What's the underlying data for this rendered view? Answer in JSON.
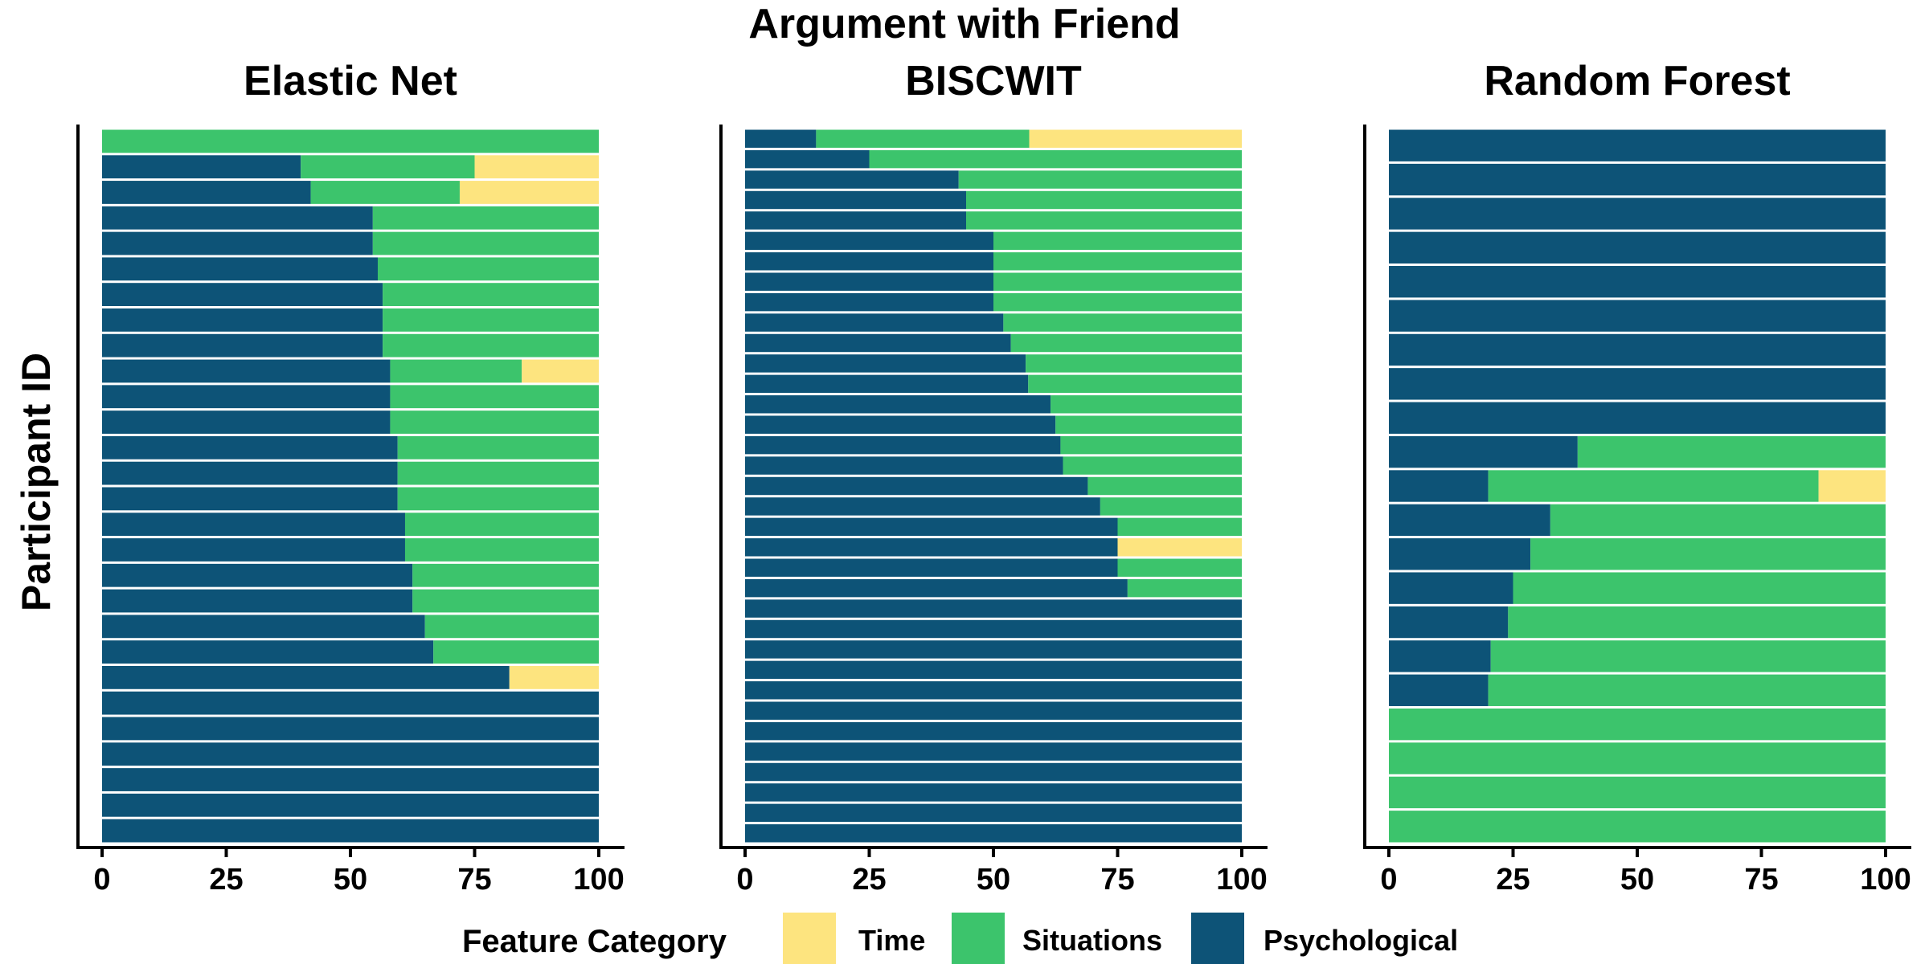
{
  "figure": {
    "title": "Argument with Friend",
    "ylabel": "Participant ID"
  },
  "legend": {
    "title": "Feature Category",
    "placement": "bottom",
    "items": [
      {
        "label": "Time",
        "color": "#fde47f"
      },
      {
        "label": "Situations",
        "color": "#3cc46c"
      },
      {
        "label": "Psychological",
        "color": "#0d5377"
      }
    ]
  },
  "chart_data": [
    {
      "type": "bar",
      "orientation": "horizontal",
      "stacked": true,
      "title": "Elastic Net",
      "xlim": [
        0,
        100
      ],
      "xticks": [
        0,
        25,
        50,
        75,
        100
      ],
      "series": [
        {
          "name": "Psychological",
          "values": [
            0,
            40,
            42,
            54.5,
            54.5,
            55.5,
            56.5,
            56.5,
            56.5,
            58,
            58,
            58,
            59.5,
            59.5,
            59.5,
            61,
            61,
            62.5,
            62.5,
            65,
            66.7,
            82,
            100,
            100,
            100,
            100,
            100,
            100
          ]
        },
        {
          "name": "Situations",
          "values": [
            100,
            35,
            30,
            45.5,
            45.5,
            44.5,
            43.5,
            43.5,
            43.5,
            26.5,
            42,
            42,
            40.5,
            40.5,
            40.5,
            39,
            39,
            37.5,
            37.5,
            35,
            33.3,
            0,
            0,
            0,
            0,
            0,
            0,
            0
          ]
        },
        {
          "name": "Time",
          "values": [
            0,
            25,
            28,
            0,
            0,
            0,
            0,
            0,
            0,
            15.5,
            0,
            0,
            0,
            0,
            0,
            0,
            0,
            0,
            0,
            0,
            0,
            18,
            0,
            0,
            0,
            0,
            0,
            0
          ]
        }
      ]
    },
    {
      "type": "bar",
      "orientation": "horizontal",
      "stacked": true,
      "title": "BISCWIT",
      "xlim": [
        0,
        100
      ],
      "xticks": [
        0,
        25,
        50,
        75,
        100
      ],
      "series": [
        {
          "name": "Psychological",
          "values": [
            14.3,
            25,
            43,
            44.5,
            44.5,
            50,
            50,
            50,
            50,
            52,
            53.5,
            56.5,
            57,
            61.5,
            62.5,
            63.5,
            64,
            69,
            71.5,
            75,
            75,
            75,
            77,
            100,
            100,
            100,
            100,
            100,
            100,
            100,
            100,
            100,
            100,
            100,
            100
          ]
        },
        {
          "name": "Situations",
          "values": [
            42.9,
            75,
            57,
            55.5,
            55.5,
            50,
            50,
            50,
            50,
            48,
            46.5,
            43.5,
            43,
            38.5,
            37.5,
            36.5,
            36,
            31,
            28.5,
            25,
            0,
            25,
            23,
            0,
            0,
            0,
            0,
            0,
            0,
            0,
            0,
            0,
            0,
            0,
            0
          ]
        },
        {
          "name": "Time",
          "values": [
            42.8,
            0,
            0,
            0,
            0,
            0,
            0,
            0,
            0,
            0,
            0,
            0,
            0,
            0,
            0,
            0,
            0,
            0,
            0,
            0,
            25,
            0,
            0,
            0,
            0,
            0,
            0,
            0,
            0,
            0,
            0,
            0,
            0,
            0,
            0
          ]
        }
      ]
    },
    {
      "type": "bar",
      "orientation": "horizontal",
      "stacked": true,
      "title": "Random Forest",
      "xlim": [
        0,
        100
      ],
      "xticks": [
        0,
        25,
        50,
        75,
        100
      ],
      "series": [
        {
          "name": "Psychological",
          "values": [
            100,
            100,
            100,
            100,
            100,
            100,
            100,
            100,
            100,
            38,
            20,
            32.5,
            28.5,
            25,
            24,
            20.5,
            20,
            0,
            0,
            0,
            0
          ]
        },
        {
          "name": "Situations",
          "values": [
            0,
            0,
            0,
            0,
            0,
            0,
            0,
            0,
            0,
            62,
            66.5,
            67.5,
            71.5,
            75,
            76,
            79.5,
            80,
            100,
            100,
            100,
            100
          ]
        },
        {
          "name": "Time",
          "values": [
            0,
            0,
            0,
            0,
            0,
            0,
            0,
            0,
            0,
            0,
            13.5,
            0,
            0,
            0,
            0,
            0,
            0,
            0,
            0,
            0,
            0
          ]
        }
      ]
    }
  ]
}
